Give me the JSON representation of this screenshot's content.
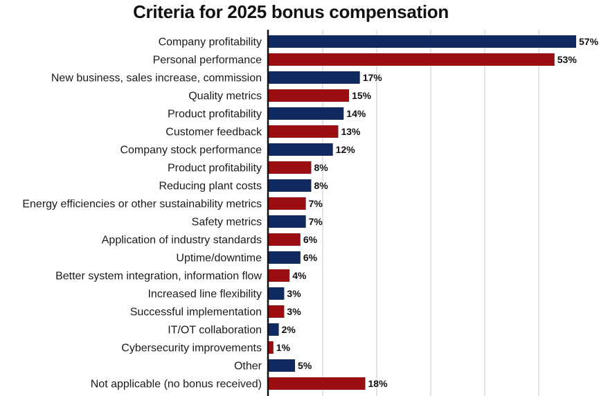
{
  "chart_data": {
    "type": "bar",
    "orientation": "horizontal",
    "title": "Criteria for 2025 bonus compensation",
    "categories": [
      "Company profitability",
      "Personal performance",
      "New business, sales increase, commission",
      "Quality metrics",
      "Product profitability",
      "Customer feedback",
      "Company stock performance",
      "Product profitability",
      "Reducing plant costs",
      "Energy efficiencies or other sustainability metrics",
      "Safety metrics",
      "Application of industry standards",
      "Uptime/downtime",
      "Better system integration, information flow",
      "Increased line flexibility",
      "Successful implementation",
      "IT/OT collaboration",
      "Cybersecurity improvements",
      "Other",
      "Not applicable (no bonus received)"
    ],
    "values": [
      57,
      53,
      17,
      15,
      14,
      13,
      12,
      8,
      8,
      7,
      7,
      6,
      6,
      4,
      3,
      3,
      2,
      1,
      5,
      18
    ],
    "value_labels": [
      "57%",
      "53%",
      "17%",
      "15%",
      "14%",
      "13%",
      "12%",
      "8%",
      "8%",
      "7%",
      "7%",
      "6%",
      "6%",
      "4%",
      "3%",
      "3%",
      "2%",
      "1%",
      "5%",
      "18%"
    ],
    "xlim": [
      0,
      57
    ],
    "grid": true,
    "colors": [
      "#0e2a5e",
      "#9c0d12"
    ]
  }
}
